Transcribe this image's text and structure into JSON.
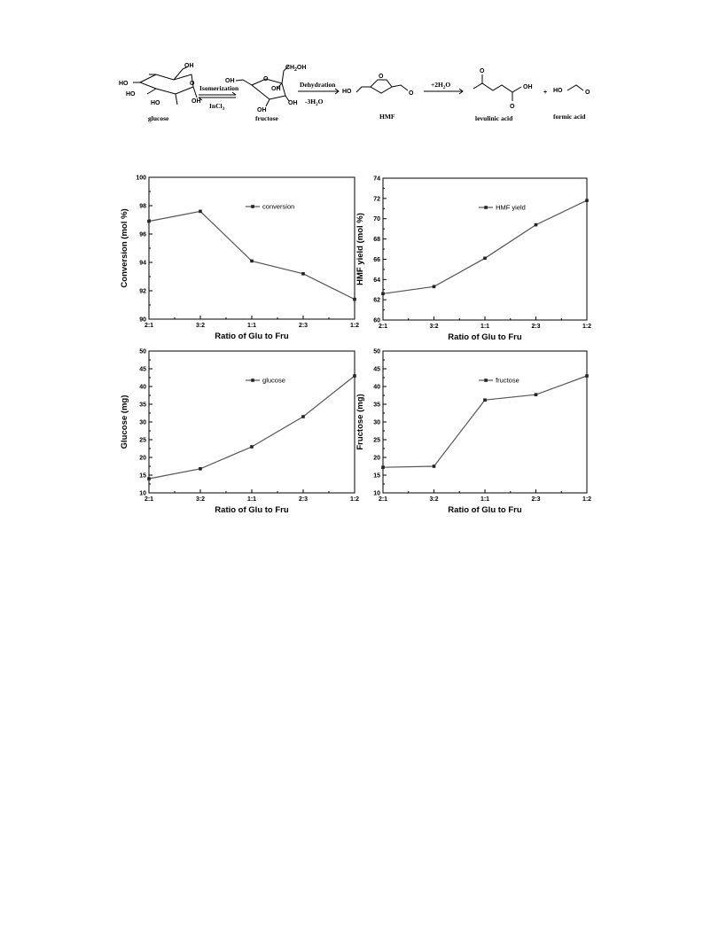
{
  "scheme": {
    "compounds": {
      "glucose": "glucose",
      "fructose": "fructose",
      "hmf": "HMF",
      "levulinic": "levulinic acid",
      "formic": "formic acid"
    },
    "arrows": {
      "isomerization": "Isomerization",
      "catalyst": "InCl",
      "catalyst_sub": "3",
      "dehydration": "Dehydration",
      "dehydration_water": "-3H",
      "dehydration_water_sub": "2",
      "dehydration_water_end": "O",
      "rehydration": "+2H",
      "rehydration_sub": "2",
      "rehydration_end": "O",
      "plus": "+"
    },
    "atoms": {
      "oh": "OH",
      "ho": "HO",
      "ch2oh": "CH",
      "ch2oh_sub": "2",
      "ch2oh_end": "OH",
      "o": "O"
    }
  },
  "chart_data": [
    {
      "type": "line",
      "categories": [
        "2:1",
        "3:2",
        "1:1",
        "2:3",
        "1:2"
      ],
      "series": [
        {
          "name": "conversion",
          "values": [
            96.9,
            97.6,
            94.1,
            93.2,
            91.4
          ]
        }
      ],
      "xlabel": "Ratio of Glu to Fru",
      "ylabel": "Conversion (mol %)",
      "ylim": [
        90,
        100
      ],
      "yticks": [
        90,
        92,
        94,
        96,
        98,
        100
      ],
      "legend": "top-right",
      "grid": false
    },
    {
      "type": "line",
      "categories": [
        "2:1",
        "3:2",
        "1:1",
        "2:3",
        "1:2"
      ],
      "series": [
        {
          "name": "HMF yield",
          "values": [
            62.6,
            63.3,
            66.1,
            69.4,
            71.8
          ]
        }
      ],
      "xlabel": "Ratio of Glu to Fru",
      "ylabel": "HMF yield (mol %)",
      "ylim": [
        60,
        74
      ],
      "yticks": [
        60,
        62,
        64,
        66,
        68,
        70,
        72,
        74
      ],
      "legend": "top-right",
      "grid": false
    },
    {
      "type": "line",
      "categories": [
        "2:1",
        "3:2",
        "1:1",
        "2:3",
        "1:2"
      ],
      "series": [
        {
          "name": "glucose",
          "values": [
            14.0,
            16.8,
            23.0,
            31.5,
            43.0
          ]
        }
      ],
      "xlabel": "Ratio of Glu to Fru",
      "ylabel": "Glucose (mg)",
      "ylim": [
        10,
        50
      ],
      "yticks": [
        10,
        15,
        20,
        25,
        30,
        35,
        40,
        45,
        50
      ],
      "legend": "top-right",
      "grid": false
    },
    {
      "type": "line",
      "categories": [
        "2:1",
        "3:2",
        "1:1",
        "2:3",
        "1:2"
      ],
      "series": [
        {
          "name": "fructose",
          "values": [
            17.2,
            17.5,
            36.2,
            37.7,
            43.0
          ]
        }
      ],
      "xlabel": "Ratio of Glu to Fru",
      "ylabel": "Fructose (mg)",
      "ylim": [
        10,
        50
      ],
      "yticks": [
        10,
        15,
        20,
        25,
        30,
        35,
        40,
        45,
        50
      ],
      "legend": "top-right",
      "grid": false
    }
  ]
}
